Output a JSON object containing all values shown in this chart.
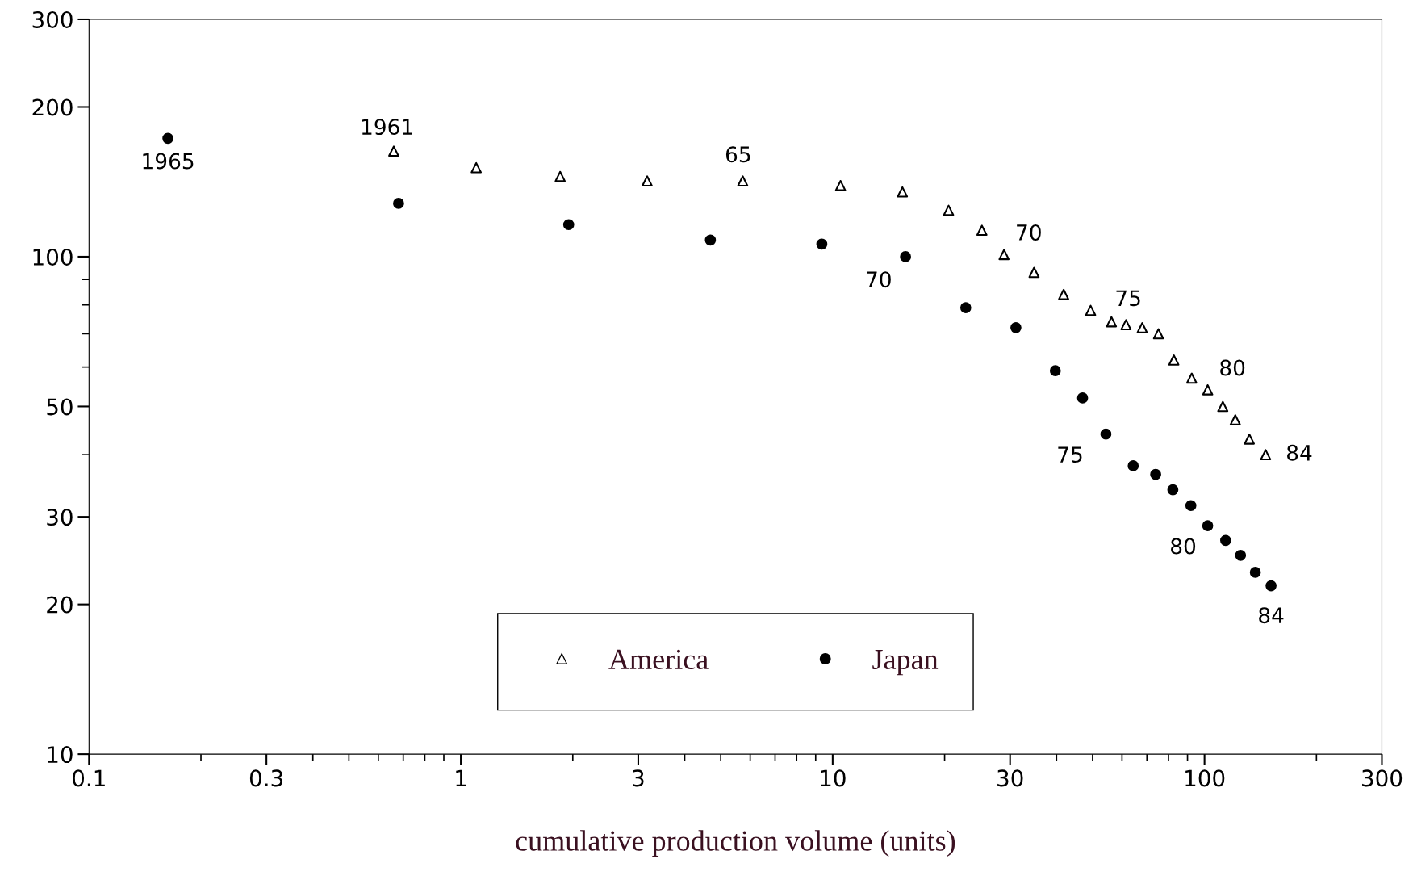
{
  "chart_data": {
    "type": "scatter",
    "xlabel": "cumulative production volume (units)",
    "log": "xy",
    "xlim": [
      0.1,
      300
    ],
    "ylim": [
      10,
      300
    ],
    "xticks": [
      {
        "value": 0.1,
        "label": "0.1"
      },
      {
        "value": 0.3,
        "label": "0.3"
      },
      1,
      3,
      10,
      30,
      100,
      300
    ],
    "yticks": [
      10,
      20,
      30,
      50,
      100,
      200,
      300
    ],
    "grid": false,
    "legend": "bottom",
    "series": [
      {
        "name": "America",
        "color": "#000000",
        "marker": "triangle",
        "x": [
          0.66,
          1.1,
          1.85,
          3.17,
          5.73,
          10.5,
          15.4,
          20.5,
          25.2,
          28.9,
          34.8,
          41.8,
          49.4,
          56.2,
          61.5,
          68.0,
          75.2,
          82.7,
          92.4,
          102,
          112,
          121,
          132,
          146
        ],
        "values": [
          163,
          151,
          145,
          142,
          142,
          139,
          135,
          124,
          113,
          101,
          93,
          84,
          78,
          74,
          73,
          72,
          70,
          62,
          57,
          54,
          50,
          47,
          43,
          40
        ]
      },
      {
        "name": "Japan",
        "color": "#000000",
        "marker": "circle",
        "x": [
          0.163,
          0.68,
          1.95,
          4.69,
          9.35,
          15.7,
          22.8,
          31.1,
          39.7,
          47.0,
          54.3,
          64.3,
          73.9,
          82.2,
          91.9,
          102,
          114,
          125,
          137,
          151
        ],
        "values": [
          173,
          128,
          116,
          108,
          106,
          100,
          79,
          72,
          59,
          52,
          44,
          38,
          36.5,
          34,
          31.6,
          28.8,
          26.9,
          25.1,
          23.2,
          21.8
        ]
      }
    ],
    "annotations": [
      {
        "text": "1965",
        "x": 0.163,
        "y": 173
      },
      {
        "text": "1961",
        "x": 0.66,
        "y": 163
      },
      {
        "text": "65",
        "x": 5.73,
        "y": 142
      },
      {
        "text": "70",
        "x": 28.9,
        "y": 101
      },
      {
        "text": "70",
        "x": 15.7,
        "y": 100
      },
      {
        "text": "75",
        "x": 61.5,
        "y": 73
      },
      {
        "text": "75",
        "x": 54.3,
        "y": 44
      },
      {
        "text": "80",
        "x": 102,
        "y": 54
      },
      {
        "text": "80",
        "x": 102,
        "y": 28.8
      },
      {
        "text": "84",
        "x": 146,
        "y": 40
      },
      {
        "text": "84",
        "x": 151,
        "y": 21.8
      }
    ]
  }
}
